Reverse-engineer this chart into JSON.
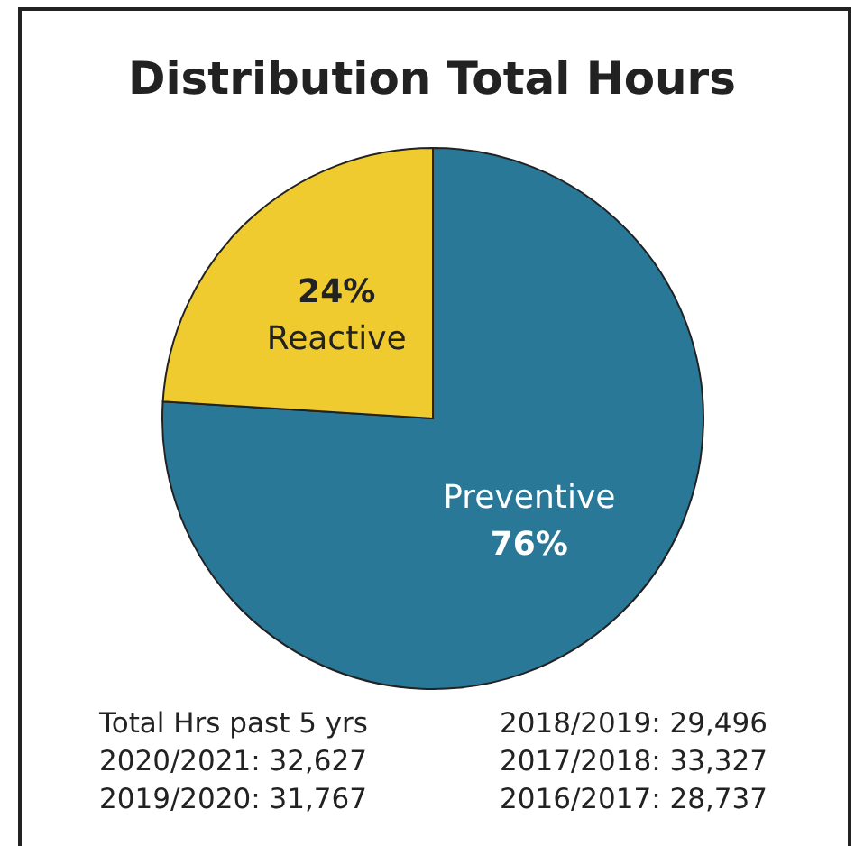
{
  "chart_data": {
    "type": "pie",
    "title": "Distribution Total Hours",
    "categories": [
      "Preventive",
      "Reactive"
    ],
    "values": [
      76,
      24
    ],
    "colors": [
      "#2a7898",
      "#efcb30"
    ],
    "legend": false,
    "value_labels": [
      "76%",
      "24%"
    ],
    "annotations": [
      "Total Hrs past 5 yrs",
      "2020/2021: 32,627",
      "2019/2020: 31,767",
      "2018/2019: 29,496",
      "2017/2018: 33,327",
      "2016/2017: 28,737"
    ]
  }
}
